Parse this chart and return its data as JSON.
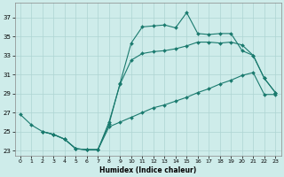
{
  "xlabel": "Humidex (Indice chaleur)",
  "bg_color": "#ceecea",
  "grid_color": "#aed4d2",
  "line_color": "#1a7a6e",
  "xlim": [
    -0.5,
    23.5
  ],
  "ylim": [
    22.5,
    38.5
  ],
  "xticks": [
    0,
    1,
    2,
    3,
    4,
    5,
    6,
    7,
    8,
    9,
    10,
    11,
    12,
    13,
    14,
    15,
    16,
    17,
    18,
    19,
    20,
    21,
    22,
    23
  ],
  "yticks": [
    23,
    25,
    27,
    29,
    31,
    33,
    35,
    37
  ],
  "line1_x": [
    0,
    1,
    2,
    3,
    4,
    5,
    6,
    7,
    8,
    9,
    10,
    11,
    12,
    13,
    14,
    15,
    16,
    17,
    18,
    19,
    20,
    21,
    22,
    23
  ],
  "line1_y": [
    26.8,
    25.7,
    25.0,
    24.7,
    24.2,
    23.2,
    23.1,
    23.1,
    25.8,
    30.1,
    34.3,
    36.0,
    36.1,
    36.2,
    35.9,
    37.5,
    35.3,
    35.2,
    35.3,
    35.3,
    33.5,
    33.0,
    30.6,
    29.1
  ],
  "line2_x": [
    2,
    3,
    4,
    5,
    6,
    7,
    8,
    9,
    10,
    11,
    12,
    13,
    14,
    15,
    16,
    17,
    18,
    19,
    20,
    21,
    22,
    23
  ],
  "line2_y": [
    25.0,
    24.7,
    24.2,
    23.2,
    23.1,
    23.1,
    26.0,
    30.0,
    32.5,
    33.2,
    33.4,
    33.5,
    33.7,
    34.0,
    34.4,
    34.4,
    34.3,
    34.4,
    34.1,
    33.0,
    30.6,
    29.1
  ],
  "line3_x": [
    2,
    3,
    4,
    5,
    6,
    7,
    8,
    9,
    10,
    11,
    12,
    13,
    14,
    15,
    16,
    17,
    18,
    19,
    20,
    21,
    22,
    23
  ],
  "line3_y": [
    25.0,
    24.7,
    24.2,
    23.2,
    23.1,
    23.1,
    25.5,
    26.0,
    26.5,
    27.0,
    27.5,
    27.8,
    28.2,
    28.6,
    29.1,
    29.5,
    30.0,
    30.4,
    30.9,
    31.2,
    28.9,
    28.9
  ]
}
